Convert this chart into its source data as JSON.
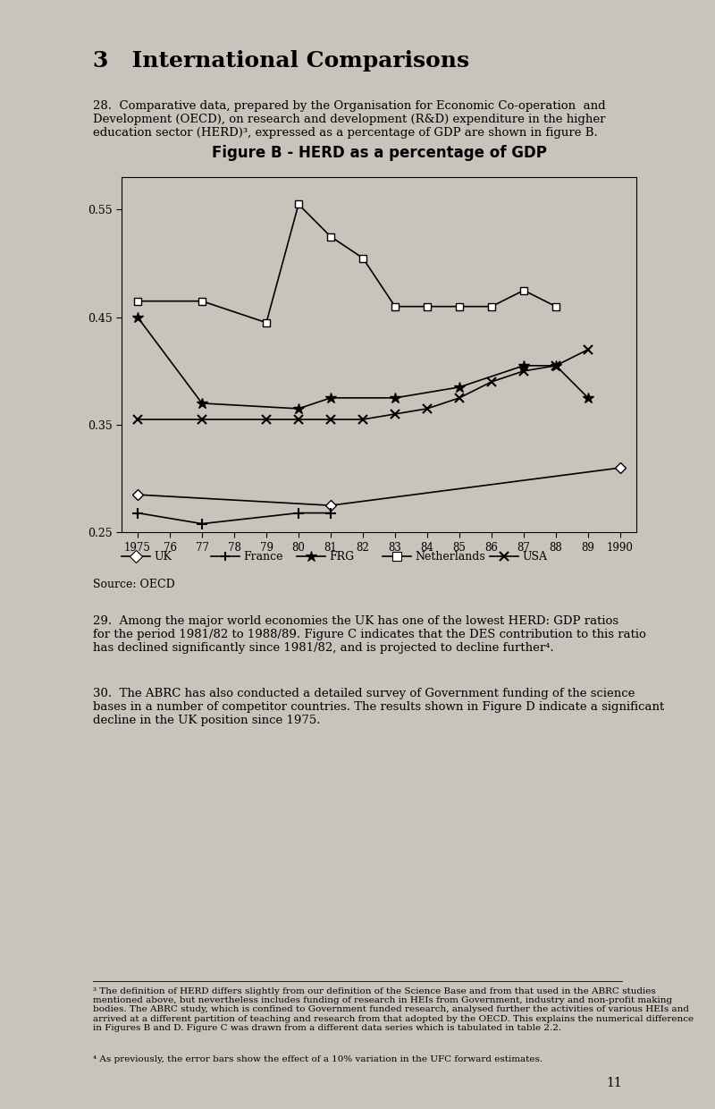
{
  "title": "Figure B - HERD as a percentage of GDP",
  "xlabel": "",
  "ylabel": "",
  "ylim": [
    0.25,
    0.58
  ],
  "yticks": [
    0.25,
    0.35,
    0.45,
    0.55
  ],
  "years": [
    1975,
    1976,
    1977,
    1978,
    1979,
    1980,
    1981,
    1982,
    1983,
    1984,
    1985,
    1986,
    1987,
    1988,
    1989,
    1990
  ],
  "UK": [
    0.285,
    null,
    null,
    null,
    null,
    null,
    0.275,
    null,
    null,
    null,
    null,
    null,
    null,
    null,
    null,
    0.31
  ],
  "France": [
    0.268,
    null,
    0.258,
    null,
    null,
    0.268,
    0.268,
    null,
    null,
    null,
    null,
    null,
    null,
    null,
    null,
    null
  ],
  "FRG": [
    0.45,
    null,
    0.37,
    null,
    null,
    0.365,
    0.375,
    null,
    0.375,
    null,
    0.385,
    null,
    0.405,
    0.405,
    0.375,
    null
  ],
  "Netherlands": [
    0.465,
    null,
    0.465,
    null,
    0.445,
    0.555,
    0.525,
    0.505,
    0.46,
    0.46,
    0.46,
    0.46,
    0.475,
    0.46,
    null,
    null
  ],
  "USA": [
    0.355,
    null,
    0.355,
    null,
    0.355,
    0.355,
    0.355,
    0.355,
    0.36,
    0.365,
    0.375,
    0.39,
    0.4,
    0.405,
    0.42,
    null
  ],
  "section_title": "3   International Comparisons",
  "para28": "28.  Comparative data, prepared by the Organisation for Economic Co-operation  and\nDevelopment (OECD), on research and development (R&D) expenditure in the higher\neducation sector (HERD)³, expressed as a percentage of GDP are shown in figure B.",
  "para29": "29.  Among the major world economies the UK has one of the lowest HERD: GDP ratios\nfor the period 1981/82 to 1988/89. Figure C indicates that the DES contribution to this ratio\nhas declined significantly since 1981/82, and is projected to decline further⁴.",
  "para30": "30.  The ABRC has also conducted a detailed survey of Government funding of the science\nbases in a number of competitor countries. The results shown in Figure D indicate a significant\ndecline in the UK position since 1975.",
  "source_label": "Source: OECD",
  "footnote3": "³ The definition of HERD differs slightly from our definition of the Science Base and from that used in the ABRC studies\nmentioned above, but nevertheless includes funding of research in HEIs from Government, industry and non-profit making\nbodies. The ABRC study, which is confined to Government funded research, analysed further the activities of various HEIs and\narrived at a different partition of teaching and research from that adopted by the OECD. This explains the numerical difference\nin Figures B and D. Figure C was drawn from a different data series which is tabulated in table 2.2.",
  "footnote4": "⁴ As previously, the error bars show the effect of a 10% variation in the UFC forward estimates.",
  "page_num": "11",
  "bg_color": "#c8c4bc"
}
